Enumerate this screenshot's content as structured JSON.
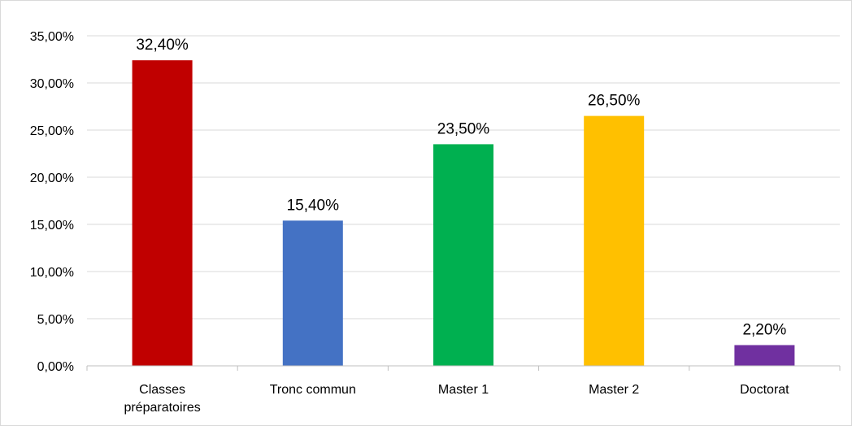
{
  "chart_data": {
    "type": "bar",
    "categories": [
      [
        "Classes",
        "préparatoires"
      ],
      [
        "Tronc commun"
      ],
      [
        "Master 1"
      ],
      [
        "Master 2"
      ],
      [
        "Doctorat"
      ]
    ],
    "values": [
      32.4,
      15.4,
      23.5,
      26.5,
      2.2
    ],
    "data_labels": [
      "32,40%",
      "15,40%",
      "23,50%",
      "26,50%",
      "2,20%"
    ],
    "colors": [
      "#c00000",
      "#4472c4",
      "#00b050",
      "#ffc000",
      "#7030a0"
    ],
    "y_ticks": [
      "0,00%",
      "5,00%",
      "10,00%",
      "15,00%",
      "20,00%",
      "25,00%",
      "30,00%",
      "35,00%"
    ],
    "ylim": [
      0,
      35
    ],
    "grid": true,
    "title": "",
    "xlabel": "",
    "ylabel": ""
  }
}
